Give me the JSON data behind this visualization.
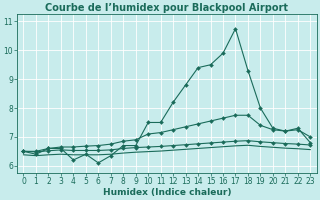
{
  "title": "Courbe de l’humidex pour Blackpool Airport",
  "xlabel": "Humidex (Indice chaleur)",
  "ylabel": "",
  "bg_color": "#c8ecec",
  "line_color": "#1a6b5a",
  "grid_color": "#ffffff",
  "xlim": [
    -0.5,
    23.5
  ],
  "ylim": [
    5.75,
    11.25
  ],
  "yticks": [
    6,
    7,
    8,
    9,
    10,
    11
  ],
  "xticks": [
    0,
    1,
    2,
    3,
    4,
    5,
    6,
    7,
    8,
    9,
    10,
    11,
    12,
    13,
    14,
    15,
    16,
    17,
    18,
    19,
    20,
    21,
    22,
    23
  ],
  "line1_x": [
    0,
    1,
    2,
    3,
    4,
    5,
    6,
    7,
    8,
    9,
    10,
    11,
    12,
    13,
    14,
    15,
    16,
    17,
    18,
    19,
    20,
    21,
    22,
    23
  ],
  "line1_y": [
    6.5,
    6.4,
    6.6,
    6.6,
    6.2,
    6.4,
    6.1,
    6.35,
    6.7,
    6.7,
    7.5,
    7.5,
    8.2,
    8.8,
    9.4,
    9.5,
    9.9,
    10.75,
    9.3,
    8.0,
    7.3,
    7.2,
    7.3,
    6.8
  ],
  "line2_x": [
    0,
    1,
    2,
    3,
    4,
    5,
    6,
    7,
    8,
    9,
    10,
    11,
    12,
    13,
    14,
    15,
    16,
    17,
    18,
    19,
    20,
    21,
    22,
    23
  ],
  "line2_y": [
    6.5,
    6.5,
    6.6,
    6.65,
    6.65,
    6.68,
    6.7,
    6.75,
    6.85,
    6.9,
    7.1,
    7.15,
    7.25,
    7.35,
    7.45,
    7.55,
    7.65,
    7.75,
    7.75,
    7.4,
    7.25,
    7.2,
    7.25,
    7.0
  ],
  "line3_x": [
    0,
    1,
    2,
    3,
    4,
    5,
    6,
    7,
    8,
    9,
    10,
    11,
    12,
    13,
    14,
    15,
    16,
    17,
    18,
    19,
    20,
    21,
    22,
    23
  ],
  "line3_y": [
    6.5,
    6.48,
    6.52,
    6.55,
    6.53,
    6.53,
    6.53,
    6.55,
    6.6,
    6.63,
    6.65,
    6.67,
    6.7,
    6.73,
    6.76,
    6.79,
    6.82,
    6.85,
    6.87,
    6.83,
    6.8,
    6.77,
    6.75,
    6.72
  ],
  "line4_x": [
    0,
    1,
    2,
    3,
    4,
    5,
    6,
    7,
    8,
    9,
    10,
    11,
    12,
    13,
    14,
    15,
    16,
    17,
    18,
    19,
    20,
    21,
    22,
    23
  ],
  "line4_y": [
    6.38,
    6.35,
    6.38,
    6.4,
    6.38,
    6.38,
    6.38,
    6.4,
    6.44,
    6.47,
    6.49,
    6.51,
    6.54,
    6.57,
    6.6,
    6.63,
    6.66,
    6.69,
    6.71,
    6.67,
    6.64,
    6.61,
    6.59,
    6.56
  ],
  "marker": "D",
  "markersize": 2.0,
  "linewidth": 0.8,
  "title_fontsize": 7,
  "xlabel_fontsize": 6.5,
  "tick_fontsize": 5.5
}
